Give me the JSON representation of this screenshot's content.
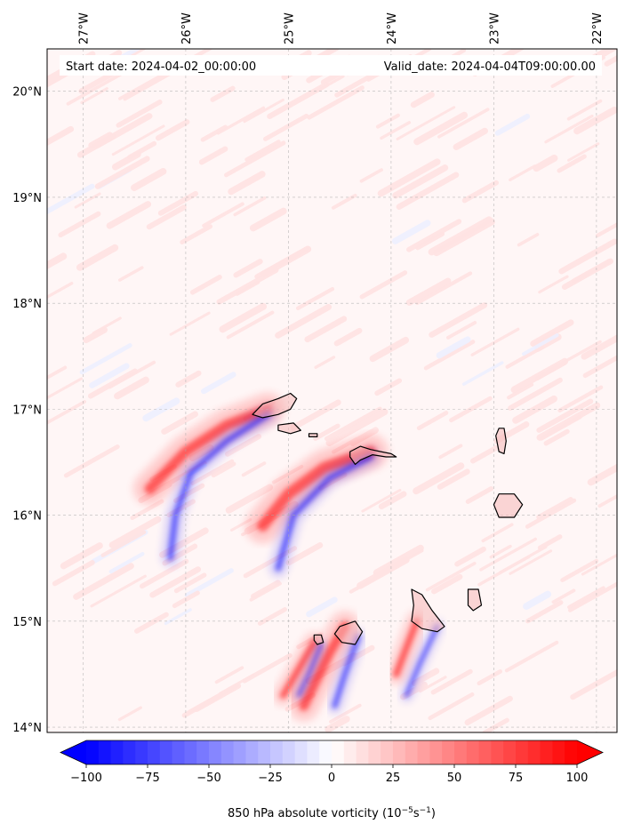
{
  "map": {
    "start_label": "Start date: 2024-04-02_00:00:00",
    "valid_label": "Valid_date: 2024-04-04T09:00:00.00",
    "lon_range": [
      -27.35,
      -21.8
    ],
    "lat_range": [
      13.95,
      20.4
    ],
    "lon_ticks": [
      {
        "value": -27,
        "label": "27°W"
      },
      {
        "value": -26,
        "label": "26°W"
      },
      {
        "value": -25,
        "label": "25°W"
      },
      {
        "value": -24,
        "label": "24°W"
      },
      {
        "value": -23,
        "label": "23°W"
      },
      {
        "value": -22,
        "label": "22°W"
      }
    ],
    "lat_ticks": [
      {
        "value": 14,
        "label": "14°N"
      },
      {
        "value": 15,
        "label": "15°N"
      },
      {
        "value": 16,
        "label": "16°N"
      },
      {
        "value": 17,
        "label": "17°N"
      },
      {
        "value": 18,
        "label": "18°N"
      },
      {
        "value": 19,
        "label": "19°N"
      },
      {
        "value": 20,
        "label": "20°N"
      }
    ],
    "grid": true,
    "islands": [
      {
        "name": "Santo Antão",
        "coords": [
          [
            -25.35,
            16.95
          ],
          [
            -25.25,
            17.05
          ],
          [
            -25.1,
            17.1
          ],
          [
            -24.98,
            17.15
          ],
          [
            -24.92,
            17.1
          ],
          [
            -24.98,
            17.0
          ],
          [
            -25.1,
            16.95
          ],
          [
            -25.25,
            16.92
          ],
          [
            -25.35,
            16.95
          ]
        ]
      },
      {
        "name": "São Vicente",
        "coords": [
          [
            -25.1,
            16.85
          ],
          [
            -24.95,
            16.87
          ],
          [
            -24.88,
            16.8
          ],
          [
            -24.98,
            16.77
          ],
          [
            -25.1,
            16.8
          ],
          [
            -25.1,
            16.85
          ]
        ]
      },
      {
        "name": "Santa Luzia",
        "coords": [
          [
            -24.8,
            16.77
          ],
          [
            -24.72,
            16.77
          ],
          [
            -24.72,
            16.74
          ],
          [
            -24.8,
            16.74
          ],
          [
            -24.8,
            16.77
          ]
        ]
      },
      {
        "name": "São Nicolau",
        "coords": [
          [
            -24.4,
            16.6
          ],
          [
            -24.3,
            16.65
          ],
          [
            -24.2,
            16.62
          ],
          [
            -24.1,
            16.6
          ],
          [
            -24.0,
            16.58
          ],
          [
            -23.95,
            16.55
          ],
          [
            -24.05,
            16.55
          ],
          [
            -24.18,
            16.57
          ],
          [
            -24.3,
            16.52
          ],
          [
            -24.35,
            16.48
          ],
          [
            -24.4,
            16.55
          ],
          [
            -24.4,
            16.6
          ]
        ]
      },
      {
        "name": "Sal",
        "coords": [
          [
            -22.95,
            16.82
          ],
          [
            -22.9,
            16.82
          ],
          [
            -22.88,
            16.7
          ],
          [
            -22.9,
            16.58
          ],
          [
            -22.95,
            16.6
          ],
          [
            -22.98,
            16.75
          ],
          [
            -22.95,
            16.82
          ]
        ]
      },
      {
        "name": "Boa Vista",
        "coords": [
          [
            -22.95,
            16.2
          ],
          [
            -22.8,
            16.2
          ],
          [
            -22.72,
            16.1
          ],
          [
            -22.8,
            15.98
          ],
          [
            -22.95,
            15.98
          ],
          [
            -23.0,
            16.1
          ],
          [
            -22.95,
            16.2
          ]
        ]
      },
      {
        "name": "Maio",
        "coords": [
          [
            -23.25,
            15.3
          ],
          [
            -23.15,
            15.3
          ],
          [
            -23.12,
            15.15
          ],
          [
            -23.2,
            15.1
          ],
          [
            -23.25,
            15.15
          ],
          [
            -23.25,
            15.3
          ]
        ]
      },
      {
        "name": "Santiago",
        "coords": [
          [
            -23.8,
            15.3
          ],
          [
            -23.7,
            15.25
          ],
          [
            -23.6,
            15.1
          ],
          [
            -23.48,
            14.95
          ],
          [
            -23.55,
            14.9
          ],
          [
            -23.7,
            14.93
          ],
          [
            -23.8,
            15.0
          ],
          [
            -23.78,
            15.15
          ],
          [
            -23.8,
            15.3
          ]
        ]
      },
      {
        "name": "Fogo",
        "coords": [
          [
            -24.5,
            14.95
          ],
          [
            -24.35,
            15.0
          ],
          [
            -24.28,
            14.9
          ],
          [
            -24.35,
            14.78
          ],
          [
            -24.48,
            14.8
          ],
          [
            -24.55,
            14.88
          ],
          [
            -24.5,
            14.95
          ]
        ]
      },
      {
        "name": "Brava",
        "coords": [
          [
            -24.75,
            14.87
          ],
          [
            -24.68,
            14.87
          ],
          [
            -24.66,
            14.8
          ],
          [
            -24.72,
            14.78
          ],
          [
            -24.75,
            14.82
          ],
          [
            -24.75,
            14.87
          ]
        ]
      }
    ],
    "field_features": [
      {
        "type": "positive",
        "coords": [
          [
            -25.2,
            17.0
          ],
          [
            -25.6,
            16.85
          ],
          [
            -26.0,
            16.6
          ],
          [
            -26.35,
            16.25
          ]
        ],
        "width": 26
      },
      {
        "type": "negative",
        "coords": [
          [
            -25.2,
            16.95
          ],
          [
            -25.6,
            16.7
          ],
          [
            -25.95,
            16.4
          ],
          [
            -26.1,
            16.0
          ],
          [
            -26.15,
            15.6
          ]
        ],
        "width": 14
      },
      {
        "type": "positive",
        "coords": [
          [
            -24.2,
            16.6
          ],
          [
            -24.65,
            16.45
          ],
          [
            -25.0,
            16.2
          ],
          [
            -25.25,
            15.9
          ]
        ],
        "width": 28
      },
      {
        "type": "negative",
        "coords": [
          [
            -24.2,
            16.55
          ],
          [
            -24.6,
            16.35
          ],
          [
            -24.95,
            16.0
          ],
          [
            -25.1,
            15.5
          ]
        ],
        "width": 14
      },
      {
        "type": "positive",
        "coords": [
          [
            -24.45,
            14.95
          ],
          [
            -24.6,
            14.7
          ],
          [
            -24.75,
            14.4
          ],
          [
            -24.85,
            14.2
          ]
        ],
        "width": 24
      },
      {
        "type": "negative",
        "coords": [
          [
            -24.32,
            14.85
          ],
          [
            -24.45,
            14.5
          ],
          [
            -24.55,
            14.2
          ]
        ],
        "width": 12
      },
      {
        "type": "positive",
        "coords": [
          [
            -23.75,
            15.0
          ],
          [
            -23.85,
            14.75
          ],
          [
            -23.95,
            14.5
          ]
        ],
        "width": 16
      },
      {
        "type": "negative",
        "coords": [
          [
            -23.55,
            14.95
          ],
          [
            -23.72,
            14.6
          ],
          [
            -23.85,
            14.3
          ]
        ],
        "width": 10
      },
      {
        "type": "positive",
        "coords": [
          [
            -24.75,
            14.8
          ],
          [
            -24.9,
            14.55
          ],
          [
            -25.05,
            14.3
          ]
        ],
        "width": 16
      },
      {
        "type": "negative",
        "coords": [
          [
            -24.68,
            14.78
          ],
          [
            -24.8,
            14.5
          ],
          [
            -24.9,
            14.3
          ]
        ],
        "width": 8
      }
    ]
  },
  "colorbar": {
    "min": -100,
    "max": 100,
    "ticks": [
      {
        "value": -100,
        "label": "−100"
      },
      {
        "value": -75,
        "label": "−75"
      },
      {
        "value": -50,
        "label": "−50"
      },
      {
        "value": -25,
        "label": "−25"
      },
      {
        "value": 0,
        "label": "0"
      },
      {
        "value": 25,
        "label": "25"
      },
      {
        "value": 50,
        "label": "50"
      },
      {
        "value": 75,
        "label": "75"
      },
      {
        "value": 100,
        "label": "100"
      }
    ],
    "label_main": "850 hPa absolute vorticity (10",
    "label_exp1": "−5",
    "label_mid": "s",
    "label_exp2": "−1",
    "label_end": ")",
    "colors": {
      "negative": "#0000ff",
      "neutral": "#ffffff",
      "positive": "#ff0000"
    }
  }
}
